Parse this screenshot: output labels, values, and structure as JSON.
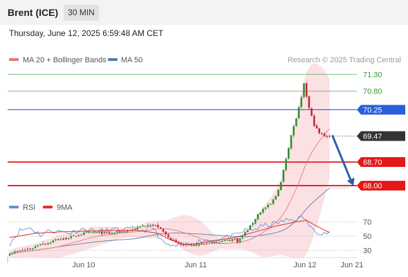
{
  "header": {
    "instrument": "Brent (ICE)",
    "timeframe": "30 MIN"
  },
  "date_line": "Thursday, June 12, 2025 6:59:48 AM CET",
  "legend": {
    "ma20_label": "MA 20 + Bollinger Bands",
    "ma50_label": "MA 50",
    "credit": "Research © 2025 Trading Central"
  },
  "rsi_legend": {
    "rsi_label": "RSI",
    "ma_label": "9MA"
  },
  "colors": {
    "up_candle": "#2f8f2f",
    "down_candle": "#c0243a",
    "bollinger_fill": "#f8c8cc",
    "ma20": "#e87878",
    "ma50": "#5a7ab8",
    "target_level": "#2e9c2e",
    "pivot_level": "#2b5fd9",
    "support_level": "#e31818",
    "last_price_tag": "#333333",
    "arrow": "#2c5ea8",
    "rsi": "#6b8fd4",
    "rsi_ma": "#e03030"
  },
  "chart_data": [
    {
      "type": "candlestick",
      "title": "Brent (ICE)",
      "timeframe": "30 MIN",
      "x_axis_labels": [
        "Jun 10",
        "Jun 11",
        "Jun 12",
        "Jun 21"
      ],
      "ylim": [
        67.55,
        71.45
      ],
      "price_levels": [
        {
          "value": 71.3,
          "label": "71.30",
          "kind": "target"
        },
        {
          "value": 70.8,
          "label": "70.80",
          "kind": "target"
        },
        {
          "value": 70.25,
          "label": "70.25",
          "kind": "pivot"
        },
        {
          "value": 68.7,
          "label": "68.70",
          "kind": "support"
        },
        {
          "value": 68.0,
          "label": "68.00",
          "kind": "support"
        }
      ],
      "last_price": {
        "value": 69.47,
        "label": "69.47"
      },
      "indicators": [
        "MA 20 + Bollinger Bands",
        "MA 50"
      ],
      "forecast_arrow": {
        "from": 69.47,
        "to": 68.0,
        "direction": "down"
      },
      "close_path": [
        [
          0,
          66.0
        ],
        [
          3,
          66.05
        ],
        [
          6,
          66.1
        ],
        [
          9,
          66.15
        ],
        [
          12,
          66.28
        ],
        [
          15,
          66.3
        ],
        [
          18,
          66.4
        ],
        [
          21,
          66.42
        ],
        [
          24,
          66.48
        ],
        [
          27,
          66.55
        ],
        [
          30,
          66.6
        ],
        [
          33,
          66.62
        ],
        [
          36,
          66.6
        ],
        [
          39,
          66.58
        ],
        [
          42,
          66.62
        ],
        [
          45,
          66.65
        ],
        [
          48,
          66.7
        ],
        [
          51,
          66.78
        ],
        [
          54,
          66.85
        ],
        [
          55,
          66.85
        ],
        [
          58,
          66.78
        ],
        [
          61,
          66.55
        ],
        [
          64,
          66.35
        ],
        [
          67,
          66.25
        ],
        [
          70,
          66.22
        ],
        [
          73,
          66.25
        ],
        [
          76,
          66.28
        ],
        [
          79,
          66.3
        ],
        [
          82,
          66.35
        ],
        [
          85,
          66.38
        ],
        [
          88,
          66.42
        ],
        [
          89,
          66.35
        ],
        [
          92,
          66.6
        ],
        [
          95,
          66.9
        ],
        [
          97,
          67.15
        ],
        [
          99,
          67.3
        ],
        [
          102,
          67.45
        ],
        [
          104,
          67.7
        ],
        [
          106,
          68.1
        ],
        [
          108,
          68.8
        ],
        [
          110,
          69.5
        ],
        [
          112,
          70.0
        ],
        [
          114,
          70.6
        ],
        [
          115,
          71.0
        ],
        [
          117,
          70.3
        ],
        [
          119,
          69.8
        ],
        [
          121,
          69.55
        ],
        [
          123,
          69.48
        ],
        [
          125,
          69.47
        ]
      ]
    },
    {
      "type": "line",
      "title": "RSI",
      "series": [
        {
          "name": "RSI"
        },
        {
          "name": "9MA"
        }
      ],
      "ylim": [
        20,
        80
      ],
      "reference_levels": [
        70,
        50,
        30
      ],
      "rsi_path": [
        [
          0,
          40
        ],
        [
          4,
          58
        ],
        [
          8,
          62
        ],
        [
          12,
          52
        ],
        [
          16,
          58
        ],
        [
          20,
          56
        ],
        [
          24,
          55
        ],
        [
          28,
          60
        ],
        [
          32,
          58
        ],
        [
          36,
          57
        ],
        [
          40,
          59
        ],
        [
          44,
          58
        ],
        [
          48,
          60
        ],
        [
          52,
          58
        ],
        [
          56,
          62
        ],
        [
          60,
          40
        ],
        [
          64,
          35
        ],
        [
          68,
          38
        ],
        [
          72,
          40
        ],
        [
          76,
          45
        ],
        [
          80,
          44
        ],
        [
          84,
          48
        ],
        [
          88,
          50
        ],
        [
          92,
          58
        ],
        [
          96,
          60
        ],
        [
          100,
          65
        ],
        [
          104,
          68
        ],
        [
          108,
          72
        ],
        [
          112,
          74
        ],
        [
          115,
          76
        ],
        [
          118,
          60
        ],
        [
          121,
          56
        ],
        [
          125,
          54
        ]
      ],
      "ma_path": [
        [
          0,
          48
        ],
        [
          10,
          54
        ],
        [
          20,
          56
        ],
        [
          30,
          57
        ],
        [
          40,
          58
        ],
        [
          50,
          58
        ],
        [
          58,
          54
        ],
        [
          62,
          46
        ],
        [
          68,
          38
        ],
        [
          74,
          40
        ],
        [
          80,
          44
        ],
        [
          88,
          48
        ],
        [
          96,
          56
        ],
        [
          104,
          64
        ],
        [
          112,
          70
        ],
        [
          116,
          72
        ],
        [
          120,
          64
        ],
        [
          125,
          55
        ]
      ]
    }
  ]
}
